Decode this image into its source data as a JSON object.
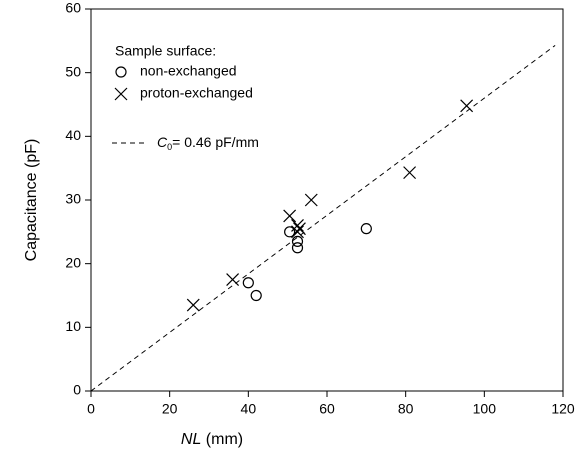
{
  "chart_data": {
    "type": "scatter",
    "xlabel_italic": "NL",
    "xlabel_rest": "(mm)",
    "ylabel": "Capacitance  (pF)",
    "xlim": [
      0,
      120
    ],
    "xticks": [
      0,
      20,
      40,
      60,
      80,
      100,
      120
    ],
    "ylim": [
      0,
      60
    ],
    "yticks": [
      0,
      10,
      20,
      30,
      40,
      50,
      60
    ],
    "legend_title": "Sample surface:",
    "series": [
      {
        "name": "non-exchanged",
        "marker": "circle",
        "color": "#000000",
        "x": [
          40,
          42,
          50.5,
          52.5,
          52.5,
          70
        ],
        "values": [
          17,
          15,
          25,
          23.5,
          22.5,
          25.5
        ]
      },
      {
        "name": "proton-exchanged",
        "marker": "cross",
        "color": "#000000",
        "x": [
          26,
          36,
          50.5,
          52.5,
          52.5,
          53,
          56,
          81,
          95.5
        ],
        "values": [
          13.5,
          17.5,
          27.5,
          26,
          25,
          25.5,
          30,
          34.3,
          44.8
        ]
      }
    ],
    "fit": {
      "label_italic": "C",
      "label_sub": "0",
      "label_rest": "= 0.46 pF/mm",
      "slope": 0.46,
      "x": [
        0,
        118
      ]
    }
  }
}
